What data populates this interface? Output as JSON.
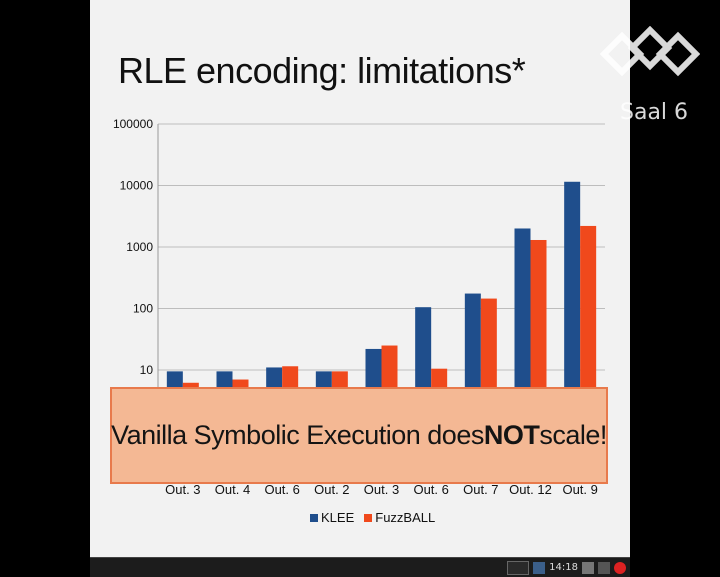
{
  "slide": {
    "title": "RLE encoding: limitations*",
    "callout_prefix": "Vanilla Symbolic Execution does ",
    "callout_bold": "NOT",
    "callout_suffix": " scale!"
  },
  "overlay": {
    "room_label": "Saal 6"
  },
  "taskbar": {
    "clock": "14:18"
  },
  "colors": {
    "klee": "#1f4e8c",
    "fuzzball": "#f0491c",
    "callout_bg": "#f4b894",
    "callout_border": "#e87a4c"
  },
  "chart_data": {
    "type": "bar",
    "yscale": "log",
    "ylim": [
      1,
      100000
    ],
    "yticks": [
      "100000",
      "10000",
      "1000",
      "100",
      "10"
    ],
    "ytick_values": [
      100000,
      10000,
      1000,
      100,
      10
    ],
    "categories": [
      "Out. 3",
      "Out. 4",
      "Out. 6",
      "Out. 2",
      "Out. 3",
      "Out. 6",
      "Out. 7",
      "Out. 12",
      "Out. 9"
    ],
    "series": [
      {
        "name": "KLEE",
        "values": [
          9.5,
          9.5,
          11,
          9.5,
          22,
          105,
          175,
          2000,
          11500
        ]
      },
      {
        "name": "FuzzBALL",
        "values": [
          6.2,
          7,
          11.5,
          9.5,
          25,
          10.5,
          145,
          1300,
          2200
        ]
      }
    ],
    "legend": "bottom",
    "grid": true
  }
}
